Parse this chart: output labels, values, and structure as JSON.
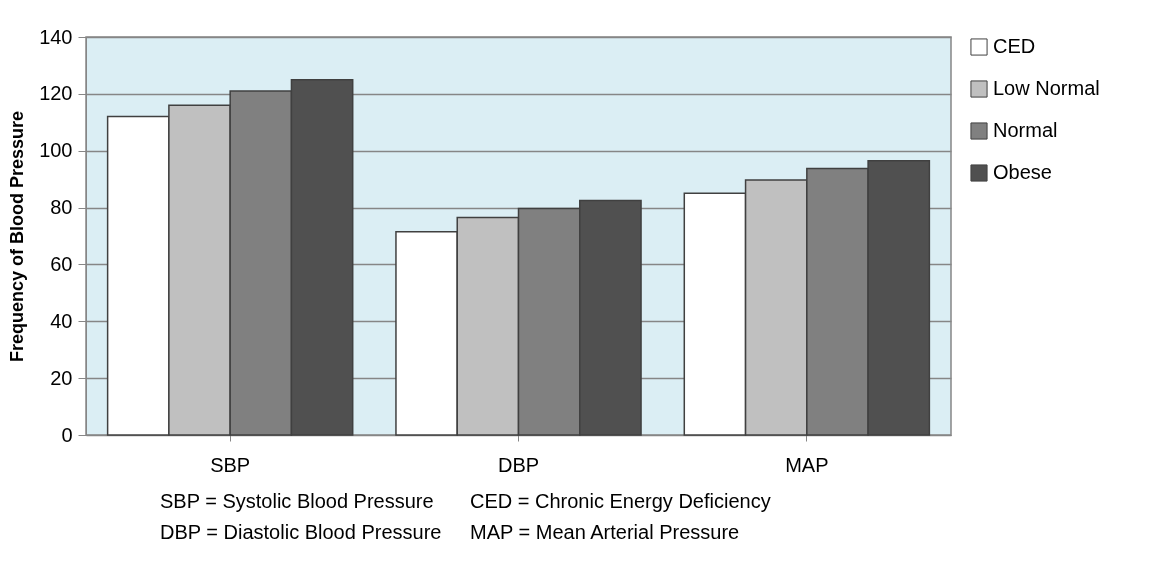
{
  "chart_data": {
    "type": "bar",
    "ylabel": "Frequency of Blood Pressure",
    "categories": [
      "SBP",
      "DBP",
      "MAP"
    ],
    "series": [
      {
        "name": "CED",
        "color": "#ffffff",
        "values": [
          112,
          71.5,
          85
        ]
      },
      {
        "name": "Low Normal",
        "color": "#c0c0c0",
        "values": [
          116,
          76.5,
          89.7
        ]
      },
      {
        "name": "Normal",
        "color": "#808080",
        "values": [
          121,
          79.7,
          93.7
        ]
      },
      {
        "name": "Obese",
        "color": "#505050",
        "values": [
          125,
          82.5,
          96.5
        ]
      }
    ],
    "ylim": [
      0,
      140
    ],
    "yticks": [
      0,
      20,
      40,
      60,
      80,
      100,
      120,
      140
    ],
    "grid": "y",
    "legend": "right",
    "annotations": [
      "SBP = Systolic Blood Pressure",
      "CED = Chronic Energy Deficiency",
      "DBP = Diastolic Blood Pressure",
      "MAP = Mean Arterial Pressure"
    ]
  }
}
